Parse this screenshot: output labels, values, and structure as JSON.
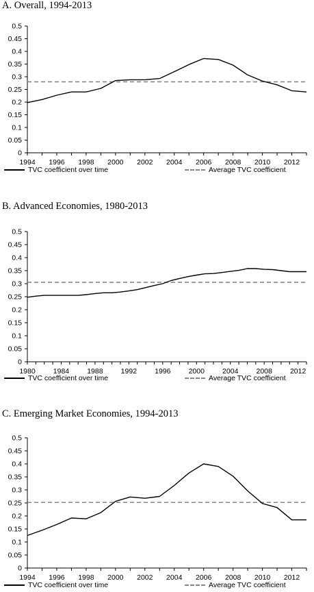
{
  "chart_data": [
    {
      "type": "line",
      "title": "A. Overall, 1994-2013",
      "ylim": [
        0,
        0.5
      ],
      "yticks": [
        "0",
        "0.05",
        "0.1",
        "0.15",
        "0.2",
        "0.25",
        "0.3",
        "0.35",
        "0.4",
        "0.45",
        "0.5"
      ],
      "xlim": [
        1994,
        2013
      ],
      "xticks": [
        "1994",
        "1996",
        "1998",
        "2000",
        "2002",
        "2004",
        "2006",
        "2008",
        "2010",
        "2012"
      ],
      "x": [
        1994,
        1995,
        1996,
        1997,
        1998,
        1999,
        2000,
        2001,
        2002,
        2003,
        2004,
        2005,
        2006,
        2007,
        2008,
        2009,
        2010,
        2011,
        2012,
        2013
      ],
      "series": [
        {
          "name": "TVC coefficient over time",
          "style": "solid",
          "color": "#000000",
          "values": [
            0.198,
            0.21,
            0.227,
            0.24,
            0.24,
            0.254,
            0.285,
            0.288,
            0.288,
            0.293,
            0.32,
            0.348,
            0.372,
            0.368,
            0.346,
            0.307,
            0.283,
            0.268,
            0.245,
            0.24
          ]
        },
        {
          "name": "Average TVC coefficient",
          "style": "dashed",
          "color": "#888888",
          "constant": 0.28
        }
      ],
      "legend": "bottom"
    },
    {
      "type": "line",
      "title": "B. Advanced Economies, 1980-2013",
      "ylim": [
        0,
        0.5
      ],
      "yticks": [
        "0",
        "0.05",
        "0.1",
        "0.15",
        "0.2",
        "0.25",
        "0.3",
        "0.35",
        "0.4",
        "0.45",
        "0.5"
      ],
      "xlim": [
        1980,
        2013
      ],
      "xticks": [
        "1980",
        "1984",
        "1988",
        "1992",
        "1996",
        "2000",
        "2004",
        "2008",
        "2012"
      ],
      "x": [
        1980,
        1981,
        1982,
        1983,
        1984,
        1985,
        1986,
        1987,
        1988,
        1989,
        1990,
        1991,
        1992,
        1993,
        1994,
        1995,
        1996,
        1997,
        1998,
        1999,
        2000,
        2001,
        2002,
        2003,
        2004,
        2005,
        2006,
        2007,
        2008,
        2009,
        2010,
        2011,
        2012,
        2013
      ],
      "series": [
        {
          "name": "TVC coefficient over time",
          "style": "solid",
          "color": "#000000",
          "values": [
            0.248,
            0.252,
            0.255,
            0.255,
            0.255,
            0.255,
            0.255,
            0.258,
            0.262,
            0.265,
            0.265,
            0.268,
            0.272,
            0.277,
            0.285,
            0.293,
            0.3,
            0.312,
            0.32,
            0.327,
            0.333,
            0.338,
            0.339,
            0.343,
            0.347,
            0.351,
            0.358,
            0.358,
            0.355,
            0.354,
            0.35,
            0.346,
            0.346,
            0.346
          ]
        },
        {
          "name": "Average TVC coefficient",
          "style": "dashed",
          "color": "#888888",
          "constant": 0.305
        }
      ],
      "legend": "bottom"
    },
    {
      "type": "line",
      "title": "C. Emerging Market Economies, 1994-2013",
      "ylim": [
        0,
        0.5
      ],
      "yticks": [
        "0",
        "0.05",
        "0.1",
        "0.15",
        "0.2",
        "0.25",
        "0.3",
        "0.35",
        "0.4",
        "0.45",
        "0.5"
      ],
      "xlim": [
        1994,
        2013
      ],
      "xticks": [
        "1994",
        "1996",
        "1998",
        "2000",
        "2002",
        "2004",
        "2006",
        "2008",
        "2010",
        "2012"
      ],
      "x": [
        1994,
        1995,
        1996,
        1997,
        1998,
        1999,
        2000,
        2001,
        2002,
        2003,
        2004,
        2005,
        2006,
        2007,
        2008,
        2009,
        2010,
        2011,
        2012,
        2013
      ],
      "series": [
        {
          "name": "TVC coefficient over time",
          "style": "solid",
          "color": "#000000",
          "values": [
            0.125,
            0.145,
            0.167,
            0.192,
            0.189,
            0.213,
            0.256,
            0.273,
            0.268,
            0.275,
            0.317,
            0.365,
            0.4,
            0.39,
            0.353,
            0.296,
            0.248,
            0.232,
            0.185,
            0.185
          ]
        },
        {
          "name": "Average TVC coefficient",
          "style": "dashed",
          "color": "#888888",
          "constant": 0.252
        }
      ],
      "legend": "bottom"
    }
  ]
}
